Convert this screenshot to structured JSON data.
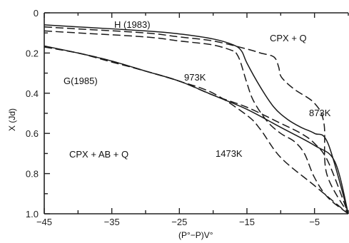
{
  "chart_data": {
    "type": "line",
    "title": "",
    "xlabel": "(P°−P)V°",
    "ylabel": "X (Jd)",
    "xlim": [
      -45,
      0
    ],
    "ylim": [
      0,
      1.0
    ],
    "y_inverted": true,
    "x_ticks": [
      -45,
      -35,
      -25,
      -15,
      -5
    ],
    "x_tick_labels": [
      "−45",
      "−35",
      "−25",
      "−15",
      "−5"
    ],
    "y_ticks": [
      0,
      0.2,
      0.4,
      0.6,
      0.8,
      1.0
    ],
    "y_tick_labels": [
      "0",
      "0.2",
      "0.4",
      "0.6",
      "0.8",
      "1.0"
    ],
    "grid": false,
    "annotations": {
      "h": "H (1983)",
      "g": "G(1985)",
      "cpx_q": "CPX + Q",
      "cpx_ab_q": "CPX + AB + Q",
      "t973": "973K",
      "t873": "873K",
      "t1473": "1473K"
    },
    "series": [
      {
        "style": "solid",
        "x": [
          -45,
          -40,
          -30,
          -25,
          -20,
          -17,
          -15.8,
          -15,
          -13,
          -11,
          -9,
          -7,
          -5,
          -3,
          0
        ],
        "y": [
          0.06,
          0.07,
          0.09,
          0.105,
          0.13,
          0.16,
          0.19,
          0.25,
          0.37,
          0.47,
          0.53,
          0.57,
          0.6,
          0.65,
          1.0
        ]
      },
      {
        "style": "dashed",
        "x": [
          -45,
          -40,
          -30,
          -25,
          -20,
          -15,
          -13,
          -11,
          -10.3,
          -9.9,
          -8,
          -5,
          -3.6,
          -3.2,
          0
        ],
        "y": [
          0.07,
          0.08,
          0.1,
          0.12,
          0.14,
          0.18,
          0.2,
          0.22,
          0.27,
          0.32,
          0.38,
          0.45,
          0.55,
          0.8,
          1.0
        ]
      },
      {
        "style": "dashed",
        "x": [
          -45,
          -40,
          -30,
          -25,
          -20,
          -17,
          -16.6,
          -16,
          -15,
          -14,
          -12,
          -10,
          -8,
          -6.5,
          -5,
          -3,
          0
        ],
        "y": [
          0.09,
          0.1,
          0.12,
          0.14,
          0.16,
          0.19,
          0.2,
          0.24,
          0.35,
          0.44,
          0.54,
          0.6,
          0.64,
          0.7,
          0.82,
          0.92,
          1.0
        ]
      },
      {
        "style": "solid",
        "x": [
          -45,
          -40,
          -35,
          -30,
          -25,
          -20,
          -15,
          -10,
          -5,
          -2,
          0
        ],
        "y": [
          0.165,
          0.2,
          0.24,
          0.29,
          0.34,
          0.41,
          0.48,
          0.57,
          0.66,
          0.74,
          1.0
        ]
      },
      {
        "style": "dashed",
        "x": [
          -45,
          -40,
          -35,
          -30,
          -25,
          -20,
          -15,
          -13,
          -10,
          -5,
          0
        ],
        "y": [
          0.17,
          0.2,
          0.24,
          0.29,
          0.34,
          0.4,
          0.51,
          0.58,
          0.72,
          0.86,
          1.0
        ]
      },
      {
        "style": "dashed",
        "x": [
          -45,
          -40,
          -35,
          -30,
          -25,
          -20,
          -15,
          -10,
          -7,
          -5,
          -3,
          0
        ],
        "y": [
          0.17,
          0.2,
          0.245,
          0.29,
          0.34,
          0.41,
          0.47,
          0.55,
          0.6,
          0.65,
          0.74,
          1.0
        ]
      }
    ]
  }
}
